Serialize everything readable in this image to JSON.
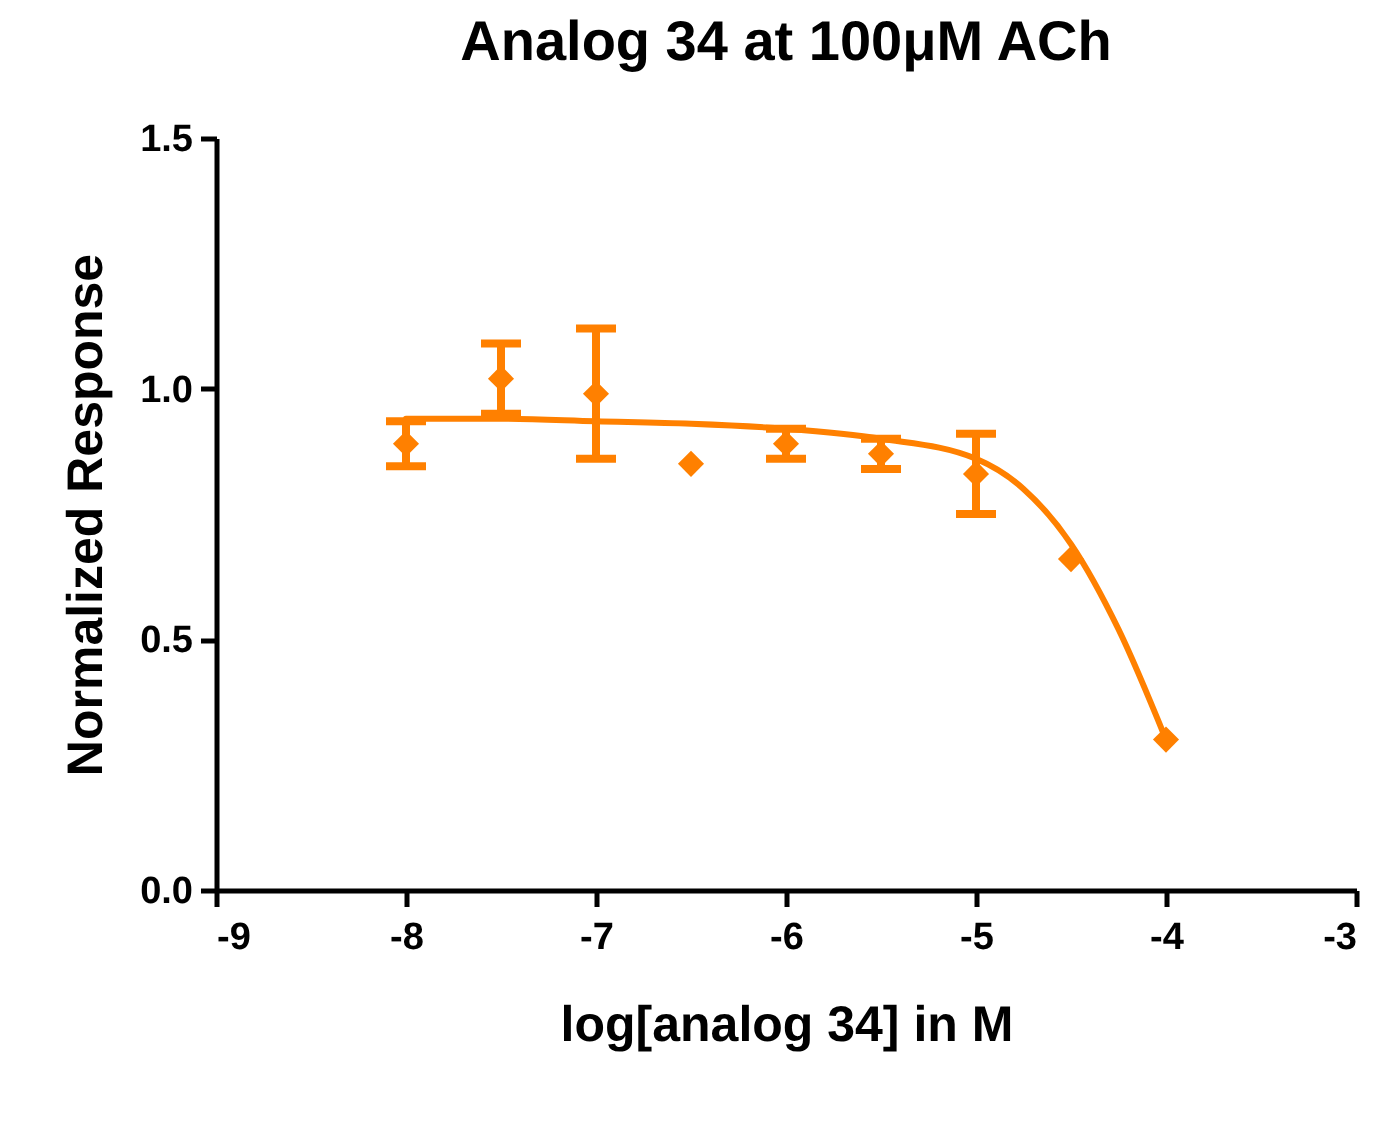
{
  "chart_data": {
    "type": "scatter",
    "title": "Analog 34  at 100μM ACh",
    "xlabel": "log[analog 34] in M",
    "ylabel": "Normalized Response",
    "xlim": [
      -9,
      -3
    ],
    "xticks": [
      -9,
      -8,
      -7,
      -6,
      -5,
      -4,
      -3
    ],
    "ylim": [
      0,
      1.5
    ],
    "yticks": [
      {
        "value": 0,
        "label": "0.0"
      },
      0.5,
      {
        "value": 1,
        "label": "1.0"
      },
      1.5
    ],
    "grid": false,
    "series": [
      {
        "color": "#ff8000",
        "marker": "diamond",
        "x": [
          -8,
          -7.5,
          -7,
          -6.5,
          -6,
          -5.5,
          -5,
          -4.5,
          -4
        ],
        "values": [
          0.89,
          1.02,
          0.99,
          0.85,
          0.89,
          0.87,
          0.83,
          0.66,
          0.3
        ],
        "errors": [
          0.045,
          0.07,
          0.13,
          null,
          0.03,
          0.03,
          0.08,
          null,
          null
        ]
      },
      {
        "type": "line",
        "color": "#ff8000",
        "x": [
          -8,
          -7.5,
          -7,
          -6.5,
          -6,
          -5.5,
          -5,
          -4.75,
          -4.5,
          -4.25,
          -4
        ],
        "values": [
          0.94,
          0.94,
          0.935,
          0.93,
          0.92,
          0.9,
          0.86,
          0.8,
          0.69,
          0.52,
          0.3
        ]
      }
    ]
  }
}
